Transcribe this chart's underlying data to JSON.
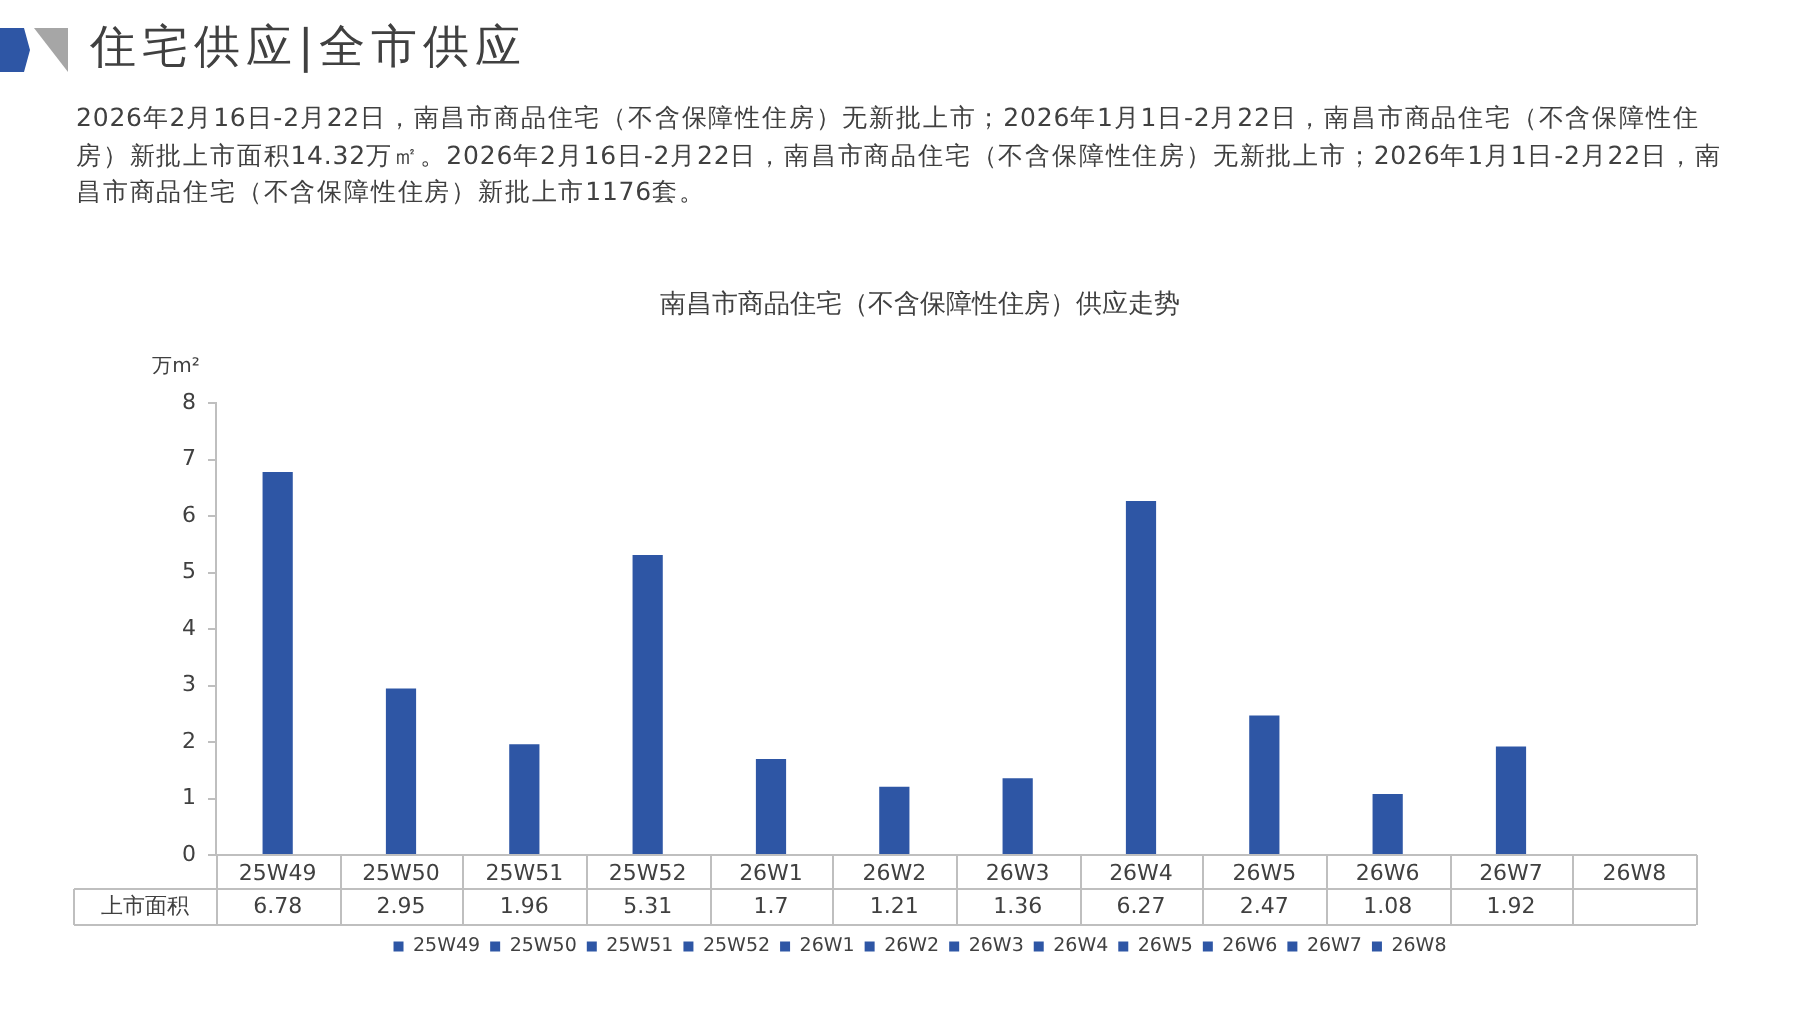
{
  "chart_data": {
    "type": "bar",
    "title": "住宅供应|全市供应",
    "subtitle": "南昌市商品住宅（不含保障性住房）供应走势",
    "ylabel": "万m²",
    "annotations": [
      "2026年2月16日-2月22日，南昌市商品住宅（不含保障性住房）无新批上市；2026年1月1日-2月22日，南昌市商品住宅（不含保障性住房）新批上市面积14.32万㎡。2026年2月16日-2月22日，南昌市商品住宅（不含保障性住房）无新批上市；2026年1月1日-2月22日，南昌市商品住宅（不含保障性住房）新批上市1176套。",
      "上市面积"
    ],
    "categories": [
      "25W49",
      "25W50",
      "25W51",
      "25W52",
      "26W1",
      "26W2",
      "26W3",
      "26W4",
      "26W5",
      "26W6",
      "26W7",
      "26W8"
    ],
    "series": [
      {
        "name": "25W49",
        "color": "#2e56a5",
        "values": [
          6.78,
          null,
          null,
          null,
          null,
          null,
          null,
          null,
          null,
          null,
          null,
          null
        ]
      },
      {
        "name": "25W50",
        "color": "#2e56a5",
        "values": [
          null,
          2.95,
          null,
          null,
          null,
          null,
          null,
          null,
          null,
          null,
          null,
          null
        ]
      },
      {
        "name": "25W51",
        "color": "#2e56a5",
        "values": [
          null,
          null,
          1.96,
          null,
          null,
          null,
          null,
          null,
          null,
          null,
          null,
          null
        ]
      },
      {
        "name": "25W52",
        "color": "#2e56a5",
        "values": [
          null,
          null,
          null,
          5.31,
          null,
          null,
          null,
          null,
          null,
          null,
          null,
          null
        ]
      },
      {
        "name": "26W1",
        "color": "#2e56a5",
        "values": [
          null,
          null,
          null,
          null,
          1.7,
          null,
          null,
          null,
          null,
          null,
          null,
          null
        ]
      },
      {
        "name": "26W2",
        "color": "#2e56a5",
        "values": [
          null,
          null,
          null,
          null,
          null,
          1.21,
          null,
          null,
          null,
          null,
          null,
          null
        ]
      },
      {
        "name": "26W3",
        "color": "#2e56a5",
        "values": [
          null,
          null,
          null,
          null,
          null,
          null,
          1.36,
          null,
          null,
          null,
          null,
          null
        ]
      },
      {
        "name": "26W4",
        "color": "#2e56a5",
        "values": [
          null,
          null,
          null,
          null,
          null,
          null,
          null,
          6.27,
          null,
          null,
          null,
          null
        ]
      },
      {
        "name": "26W5",
        "color": "#2e56a5",
        "values": [
          null,
          null,
          null,
          null,
          null,
          null,
          null,
          null,
          2.47,
          null,
          null,
          null
        ]
      },
      {
        "name": "26W6",
        "color": "#2e56a5",
        "values": [
          null,
          null,
          null,
          null,
          null,
          null,
          null,
          null,
          null,
          1.08,
          null,
          null
        ]
      },
      {
        "name": "26W7",
        "color": "#2e56a5",
        "values": [
          null,
          null,
          null,
          null,
          null,
          null,
          null,
          null,
          null,
          null,
          1.92,
          null
        ]
      },
      {
        "name": "26W8",
        "color": "#2e56a5",
        "values": [
          null,
          null,
          null,
          null,
          null,
          null,
          null,
          null,
          null,
          null,
          null,
          null
        ]
      }
    ],
    "ylim": [
      0,
      8
    ],
    "yticks": [
      0,
      1,
      2,
      3,
      4,
      5,
      6,
      7,
      8
    ],
    "grid": false,
    "legend": "bottom",
    "data_labels": true
  }
}
